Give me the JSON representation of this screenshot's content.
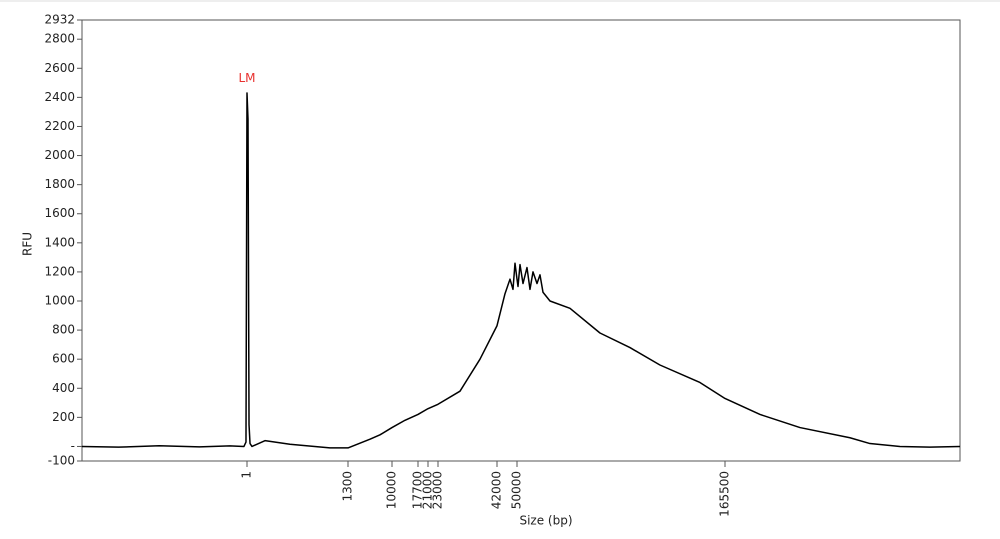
{
  "chart_data": {
    "type": "line",
    "xlabel": "Size (bp)",
    "ylabel": "RFU",
    "annotations": [
      {
        "text": "LM",
        "x": 1,
        "y": 2530,
        "color": "#e8312f"
      }
    ],
    "xlim": [
      -2100,
      296000
    ],
    "xticks": [
      1,
      1300,
      10000,
      17700,
      21000,
      23000,
      42000,
      50000,
      165500
    ],
    "ylim": [
      -100,
      2932
    ],
    "yticks": [
      -100,
      {
        "value": 0,
        "label": "-"
      },
      200,
      400,
      600,
      800,
      1000,
      1200,
      1400,
      1600,
      1800,
      2000,
      2200,
      2400,
      2600,
      2800,
      2932
    ],
    "series": [
      {
        "color": "#000000",
        "x": [
          -2100,
          -1633,
          -1118,
          -604,
          -218,
          -38,
          -12,
          1,
          14,
          27,
          40,
          65,
          232,
          553,
          1067,
          1300,
          5650,
          7630,
          10000,
          13850,
          17700,
          21000,
          23000,
          30080,
          36520,
          42000,
          45200,
          47200,
          48400,
          49200,
          50000,
          50555,
          51665,
          53330,
          55550,
          57215,
          58880,
          61100,
          62765,
          64430,
          68320,
          79420,
          96070,
          112720,
          129370,
          151570,
          165500,
          184930,
          207130,
          234880,
          245980,
          262630,
          279280,
          296000
        ],
        "values": [
          0,
          -5,
          5,
          -3,
          4,
          0,
          30,
          2430,
          2250,
          150,
          20,
          0,
          40,
          15,
          -10,
          -10,
          50,
          80,
          130,
          180,
          220,
          260,
          290,
          380,
          600,
          830,
          1050,
          1150,
          1080,
          1260,
          1150,
          1100,
          1250,
          1120,
          1230,
          1080,
          1200,
          1120,
          1180,
          1060,
          1000,
          950,
          780,
          680,
          560,
          440,
          330,
          220,
          130,
          60,
          20,
          0,
          -5,
          0
        ]
      }
    ]
  }
}
